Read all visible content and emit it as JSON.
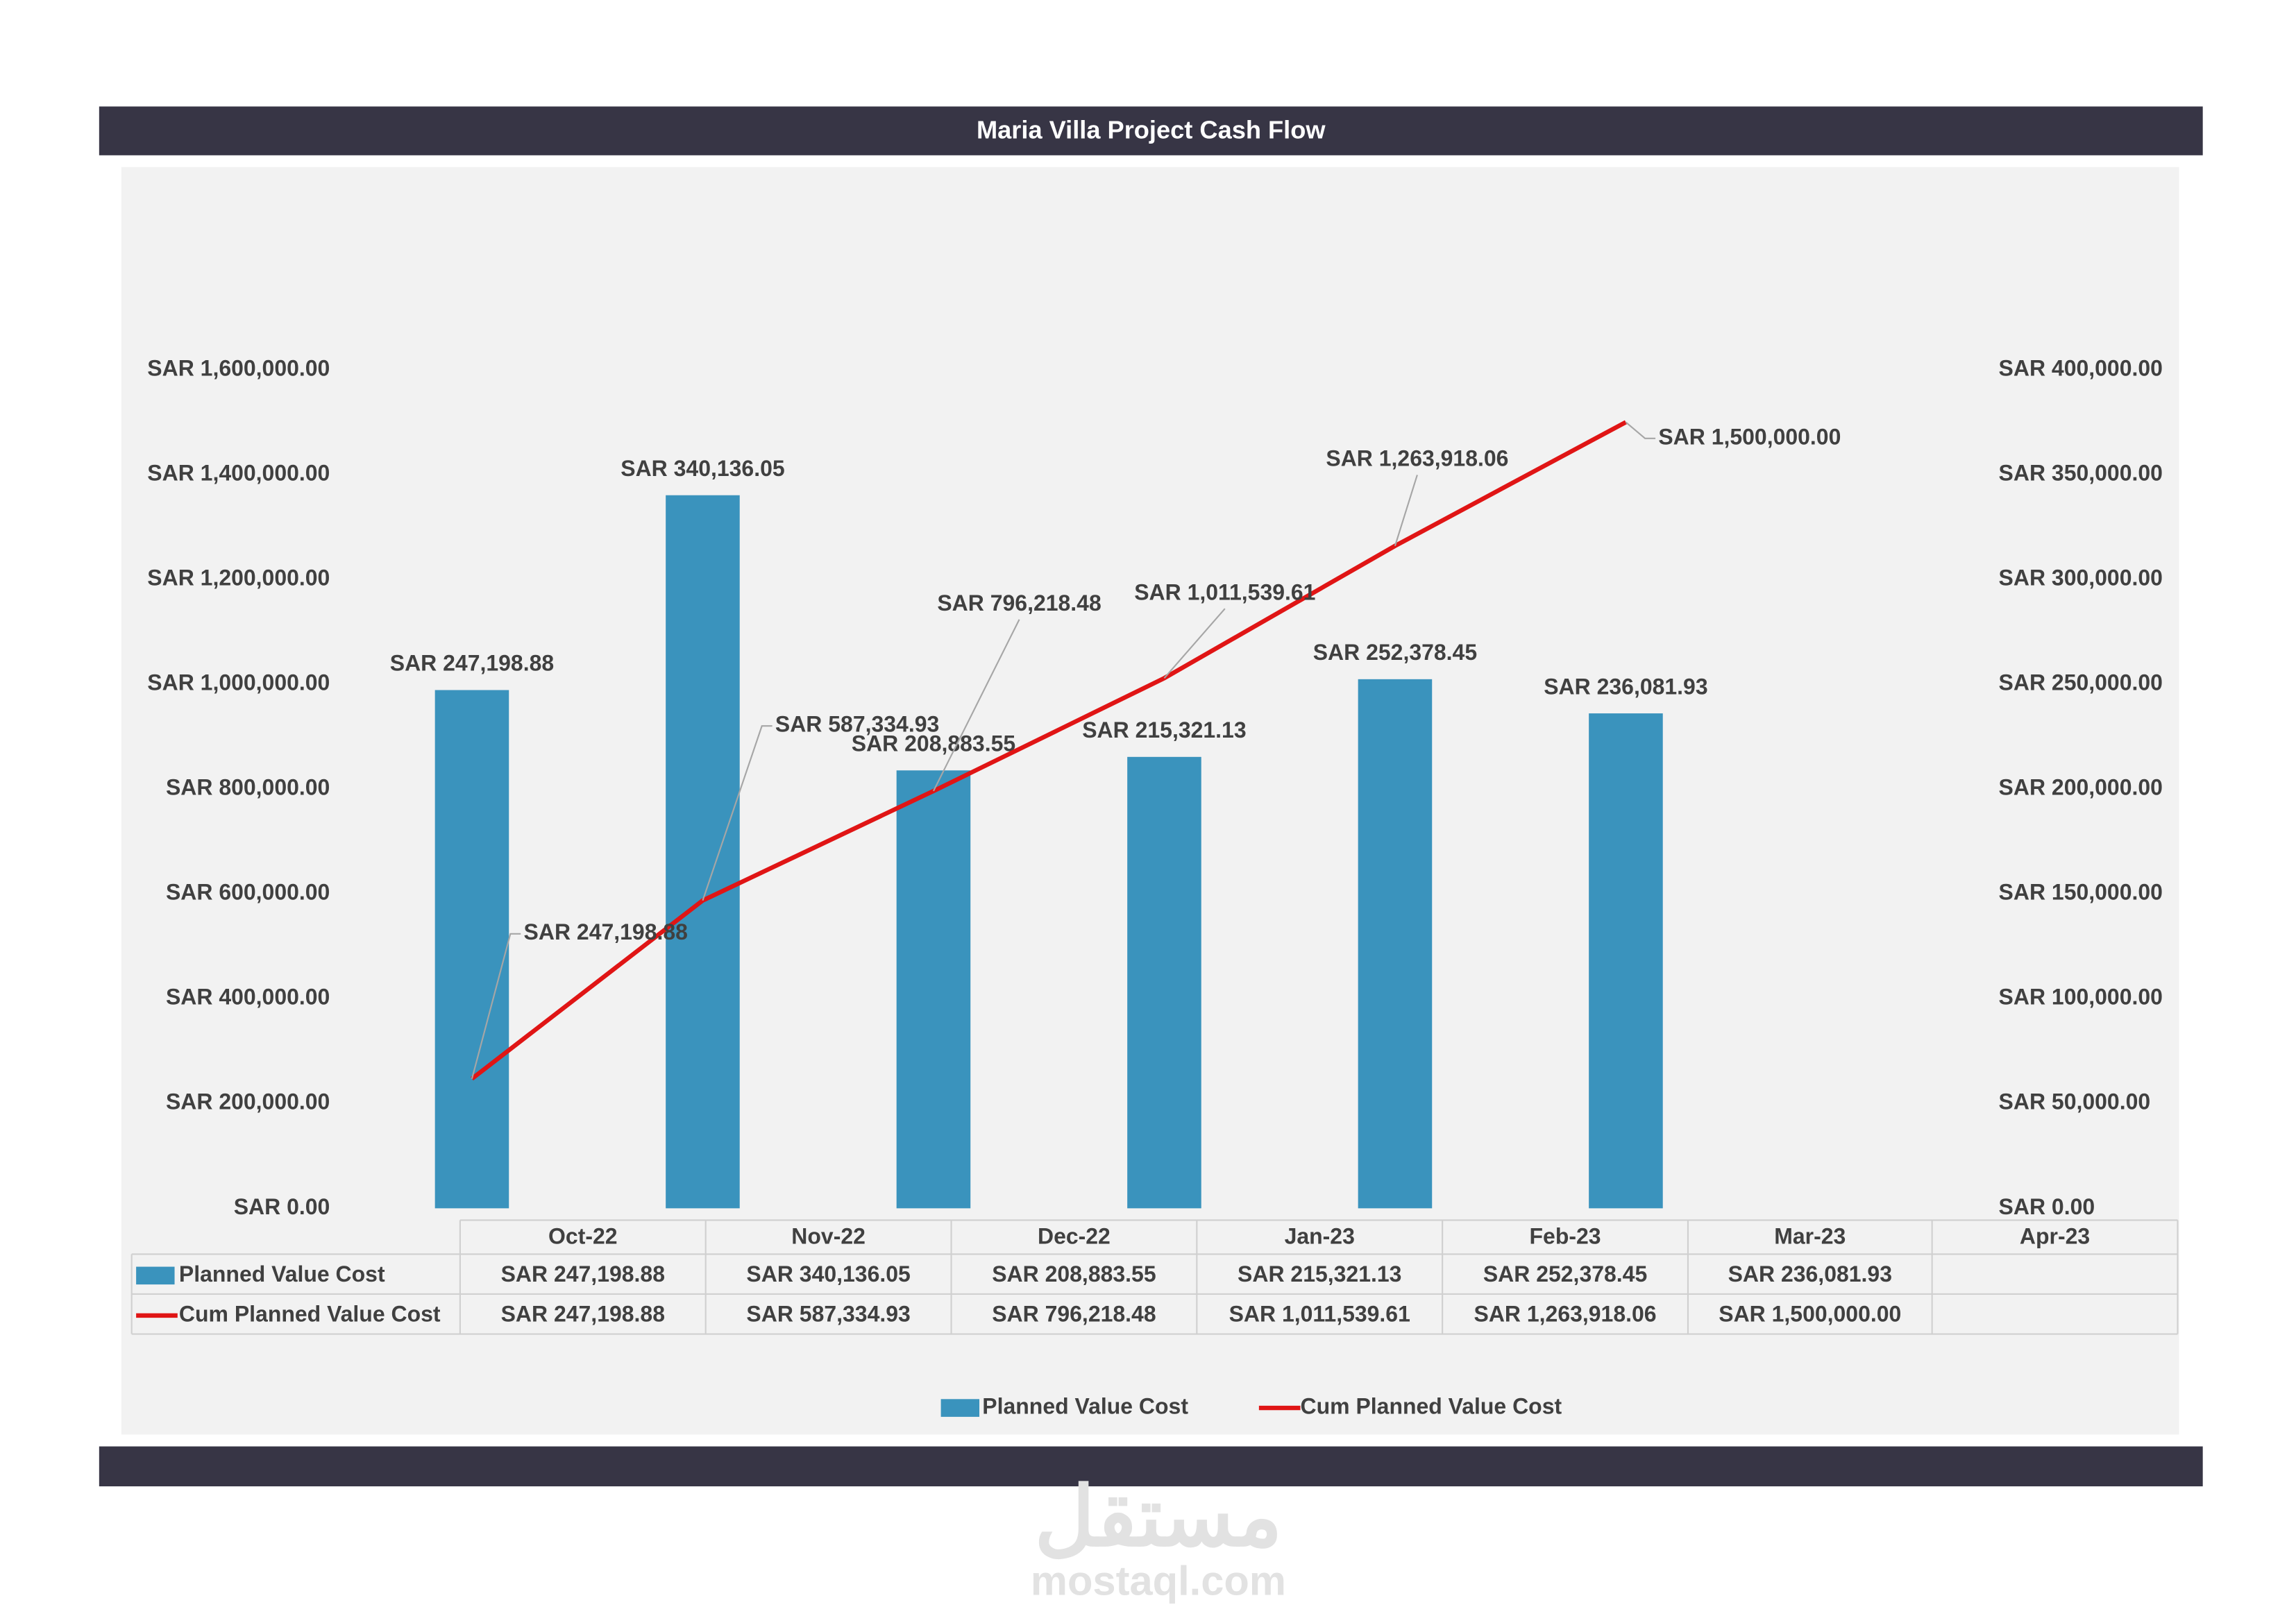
{
  "chart_data": {
    "type": "bar-line",
    "title": "Maria Villa Project Cash Flow",
    "categories": [
      "Oct-22",
      "Nov-22",
      "Dec-22",
      "Jan-23",
      "Feb-23",
      "Mar-23",
      "Apr-23"
    ],
    "series": [
      {
        "name": "Planned Value Cost",
        "type": "bar",
        "axis": "y2",
        "color": "#3a93bd",
        "values": [
          247198.88,
          340136.05,
          208883.55,
          215321.13,
          252378.45,
          236081.93,
          null
        ],
        "value_labels": [
          "SAR 247,198.88",
          "SAR 340,136.05",
          "SAR 208,883.55",
          "SAR 215,321.13",
          "SAR 252,378.45",
          "SAR 236,081.93",
          null
        ]
      },
      {
        "name": "Cum Planned Value Cost",
        "type": "line",
        "axis": "y",
        "color": "#e01515",
        "values": [
          247198.88,
          587334.93,
          796218.48,
          1011539.61,
          1263918.06,
          1500000,
          null
        ],
        "value_labels": [
          "SAR 247,198.88",
          "SAR 587,334.93",
          "SAR 796,218.48",
          "SAR 1,011,539.61",
          "SAR 1,263,918.06",
          "SAR 1,500,000.00",
          null
        ]
      }
    ],
    "ylim": [
      0,
      1600000
    ],
    "yticks": [
      {
        "value": 0,
        "label": "SAR 0.00"
      },
      {
        "value": 200000,
        "label": "SAR 200,000.00"
      },
      {
        "value": 400000,
        "label": "SAR 400,000.00"
      },
      {
        "value": 600000,
        "label": "SAR 600,000.00"
      },
      {
        "value": 800000,
        "label": "SAR 800,000.00"
      },
      {
        "value": 1000000,
        "label": "SAR 1,000,000.00"
      },
      {
        "value": 1200000,
        "label": "SAR 1,200,000.00"
      },
      {
        "value": 1400000,
        "label": "SAR 1,400,000.00"
      },
      {
        "value": 1600000,
        "label": "SAR 1,600,000.00"
      }
    ],
    "y2lim": [
      0,
      400000
    ],
    "y2ticks": [
      {
        "value": 0,
        "label": "SAR 0.00"
      },
      {
        "value": 50000,
        "label": "SAR 50,000.00"
      },
      {
        "value": 100000,
        "label": "SAR 100,000.00"
      },
      {
        "value": 150000,
        "label": "SAR 150,000.00"
      },
      {
        "value": 200000,
        "label": "SAR 200,000.00"
      },
      {
        "value": 250000,
        "label": "SAR 250,000.00"
      },
      {
        "value": 300000,
        "label": "SAR 300,000.00"
      },
      {
        "value": 350000,
        "label": "SAR 350,000.00"
      },
      {
        "value": 400000,
        "label": "SAR 400,000.00"
      }
    ],
    "grid": false,
    "legend": "bottom",
    "data_table": true
  },
  "watermark": {
    "arabic": "مستقل",
    "latin": "mostaql.com"
  }
}
